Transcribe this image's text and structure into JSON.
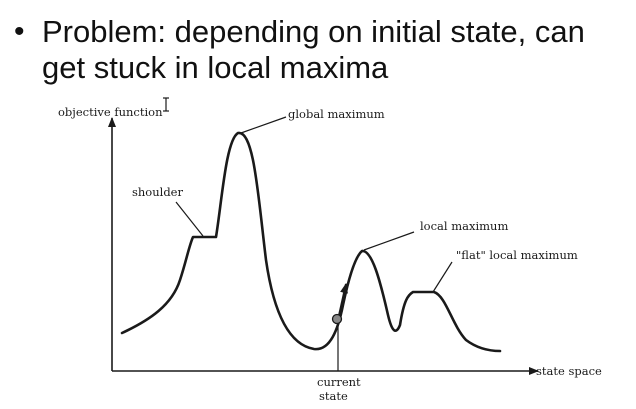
{
  "slide": {
    "bullet_symbol": "•",
    "bullet_text": "Problem: depending on initial state, can\nget stuck in local maxima"
  },
  "diagram": {
    "y_axis_label": "objective function",
    "x_axis_label": "state space",
    "labels": {
      "global_maximum": "global maximum",
      "shoulder": "shoulder",
      "local_maximum": "local maximum",
      "flat_local_maximum": "\"flat\" local maximum",
      "current_state_line1": "current",
      "current_state_line2": "state"
    },
    "colors": {
      "ink": "#1a1a1a"
    }
  }
}
